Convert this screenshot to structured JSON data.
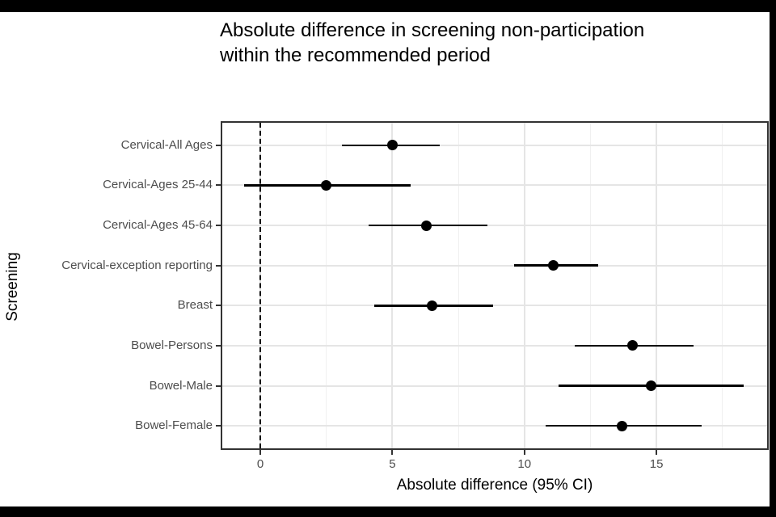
{
  "chart_data": {
    "type": "scatter",
    "subtype": "forest-plot",
    "title": "Absolute difference in screening non-participation within the recommended period",
    "title_lines": [
      "Absolute difference in screening non-participation",
      "within the recommended period"
    ],
    "xlabel": "Absolute difference (95% CI)",
    "ylabel": "Screening",
    "categories": [
      "Cervical-All Ages",
      "Cervical-Ages 25-44",
      "Cervical-Ages 45-64",
      "Cervical-exception reporting",
      "Breast",
      "Bowel-Persons",
      "Bowel-Male",
      "Bowel-Female"
    ],
    "points": [
      {
        "label": "Cervical-All Ages",
        "estimate": 5.0,
        "ci_low": 3.1,
        "ci_high": 6.8
      },
      {
        "label": "Cervical-Ages 25-44",
        "estimate": 2.5,
        "ci_low": -0.6,
        "ci_high": 5.7
      },
      {
        "label": "Cervical-Ages 45-64",
        "estimate": 6.3,
        "ci_low": 4.1,
        "ci_high": 8.6
      },
      {
        "label": "Cervical-exception reporting",
        "estimate": 11.1,
        "ci_low": 9.6,
        "ci_high": 12.8
      },
      {
        "label": "Breast",
        "estimate": 6.5,
        "ci_low": 4.3,
        "ci_high": 8.8
      },
      {
        "label": "Bowel-Persons",
        "estimate": 14.1,
        "ci_low": 11.9,
        "ci_high": 16.4
      },
      {
        "label": "Bowel-Male",
        "estimate": 14.8,
        "ci_low": 11.3,
        "ci_high": 18.3
      },
      {
        "label": "Bowel-Female",
        "estimate": 13.7,
        "ci_low": 10.8,
        "ci_high": 16.7
      }
    ],
    "x_ticks": [
      0,
      5,
      10,
      15
    ],
    "x_minor_gridlines": [
      2.5,
      7.5,
      12.5,
      17.5
    ],
    "xlim": [
      -1.5,
      19.25
    ],
    "reference_line": {
      "x": 0,
      "style": "dashed",
      "color": "#000000"
    },
    "grid": "on",
    "legend": "none",
    "colors": {
      "point": "#000000",
      "ci_line": "#000000",
      "panel_border": "#333333",
      "grid_major": "#e5e5e5",
      "grid_minor": "#f0f0f0",
      "tick_label": "#4d4d4d",
      "axis_title": "#000000",
      "title": "#000000",
      "background": "#ffffff",
      "frame": "#000000"
    }
  }
}
